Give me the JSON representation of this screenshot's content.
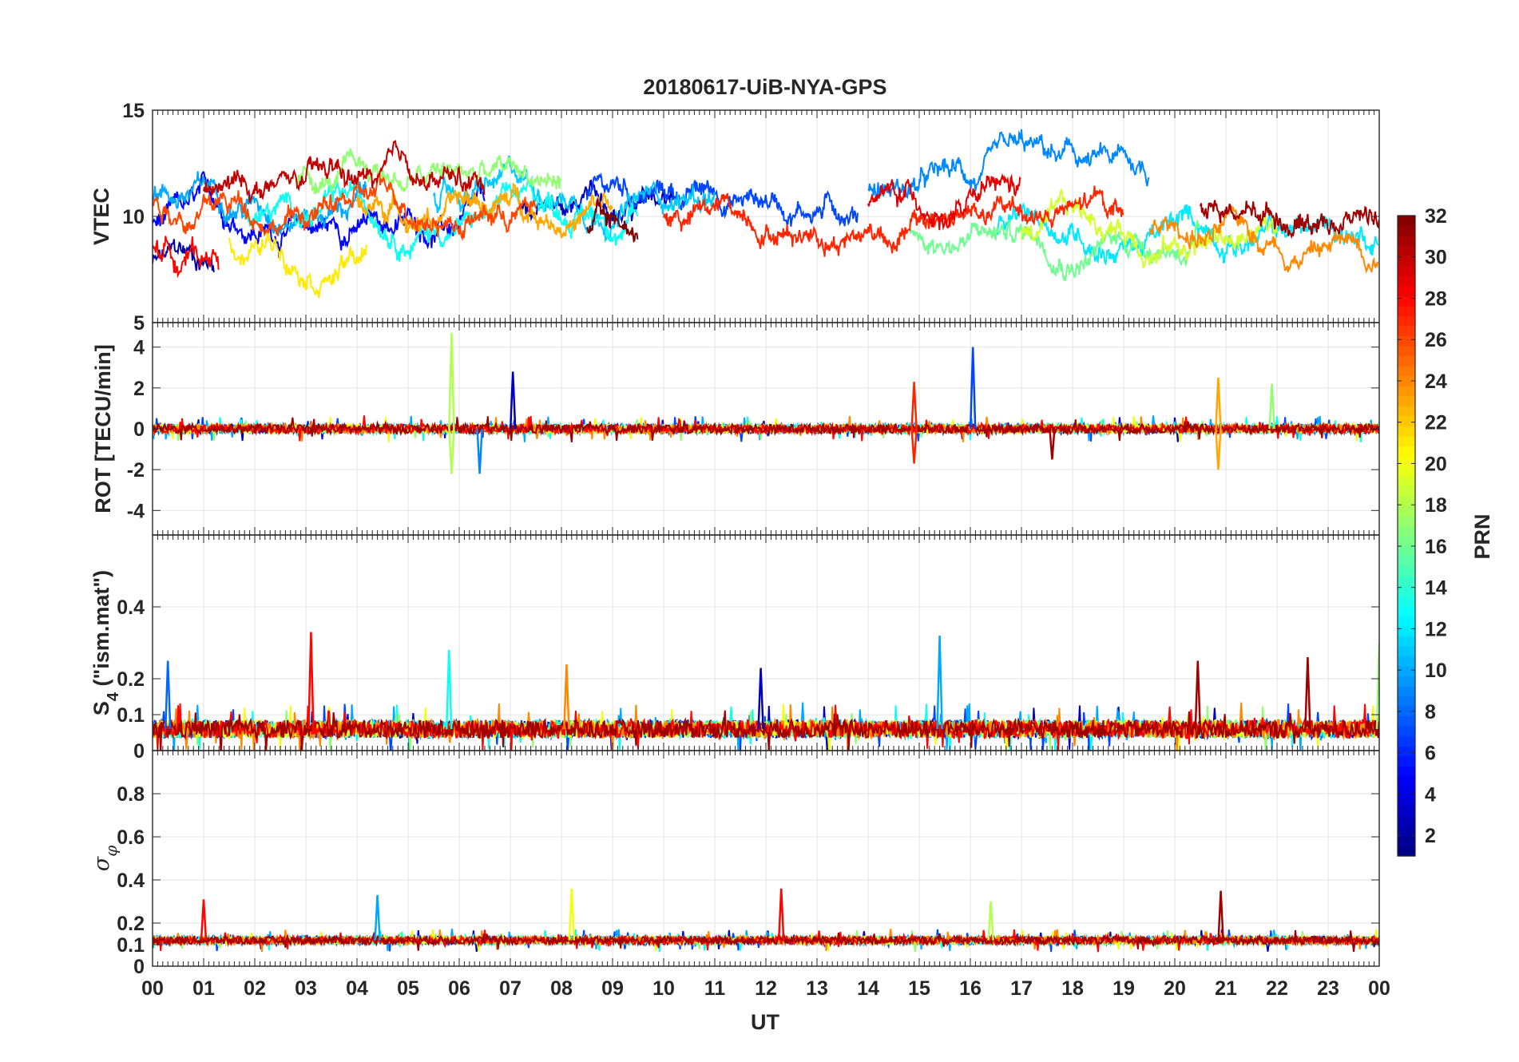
{
  "chart_data": {
    "type": "line",
    "title": "20180617-UiB-NYA-GPS",
    "xlabel": "UT",
    "xlim": [
      0,
      24
    ],
    "x_tick_labels": [
      "00",
      "01",
      "02",
      "03",
      "04",
      "05",
      "06",
      "07",
      "08",
      "09",
      "10",
      "11",
      "12",
      "13",
      "14",
      "15",
      "16",
      "17",
      "18",
      "19",
      "20",
      "21",
      "22",
      "23",
      "00"
    ],
    "colorbar": {
      "label": "PRN",
      "range": [
        1,
        32
      ],
      "ticks": [
        "2",
        "4",
        "6",
        "8",
        "10",
        "12",
        "14",
        "16",
        "18",
        "20",
        "22",
        "24",
        "26",
        "28",
        "30",
        "32"
      ],
      "colormap": "jet"
    },
    "panels": [
      {
        "ylabel": "VTEC",
        "ylim": [
          5,
          15
        ],
        "y_tick_labels": [
          "5",
          "10",
          "15"
        ],
        "baseline": 10,
        "noise": 0.5,
        "series": [
          {
            "prn": 2,
            "start": 0.0,
            "end": 1.2,
            "base": 7.8
          },
          {
            "prn": 3,
            "start": 7.2,
            "end": 10.2,
            "base": 10.5
          },
          {
            "prn": 5,
            "start": 0.0,
            "end": 6.5,
            "base": 9.6
          },
          {
            "prn": 7,
            "start": 8.5,
            "end": 13.8,
            "base": 11.0
          },
          {
            "prn": 9,
            "start": 14.0,
            "end": 19.5,
            "base": 11.5
          },
          {
            "prn": 10,
            "start": 0.0,
            "end": 4.2,
            "base": 11.2
          },
          {
            "prn": 11,
            "start": 5.5,
            "end": 11.0,
            "base": 11.2
          },
          {
            "prn": 12,
            "start": 16.5,
            "end": 24.0,
            "base": 9.3
          },
          {
            "prn": 13,
            "start": 1.8,
            "end": 9.5,
            "base": 10.2
          },
          {
            "prn": 16,
            "start": 14.8,
            "end": 20.5,
            "base": 9.3
          },
          {
            "prn": 17,
            "start": 2.8,
            "end": 8.0,
            "base": 11.6
          },
          {
            "prn": 19,
            "start": 17.0,
            "end": 22.0,
            "base": 9.2
          },
          {
            "prn": 21,
            "start": 1.5,
            "end": 4.2,
            "base": 8.8
          },
          {
            "prn": 23,
            "start": 4.0,
            "end": 9.0,
            "base": 10.6
          },
          {
            "prn": 24,
            "start": 19.5,
            "end": 24.0,
            "base": 9.0
          },
          {
            "prn": 26,
            "start": 0.0,
            "end": 7.5,
            "base": 10.6
          },
          {
            "prn": 27,
            "start": 10.0,
            "end": 19.0,
            "base": 10.0
          },
          {
            "prn": 28,
            "start": 0.0,
            "end": 1.3,
            "base": 8.5
          },
          {
            "prn": 29,
            "start": 14.0,
            "end": 17.0,
            "base": 10.5
          },
          {
            "prn": 30,
            "start": 1.0,
            "end": 6.5,
            "base": 11.2
          },
          {
            "prn": 31,
            "start": 20.5,
            "end": 24.0,
            "base": 10.5
          },
          {
            "prn": 32,
            "start": 8.5,
            "end": 9.5,
            "base": 9.5
          }
        ]
      },
      {
        "ylabel": "ROT [TECU/min]",
        "ylim": [
          -5.2,
          5.2
        ],
        "y_tick_labels": [
          "4",
          "2",
          "0",
          "-2",
          "-4"
        ],
        "baseline": 0,
        "noise": 0.22,
        "spikes": [
          {
            "x": 5.85,
            "y": 4.7,
            "prn": 18
          },
          {
            "x": 5.85,
            "y": -2.2,
            "prn": 18
          },
          {
            "x": 6.4,
            "y": -2.2,
            "prn": 9
          },
          {
            "x": 7.05,
            "y": 2.8,
            "prn": 3
          },
          {
            "x": 14.9,
            "y": 2.3,
            "prn": 27
          },
          {
            "x": 14.9,
            "y": -1.7,
            "prn": 27
          },
          {
            "x": 16.05,
            "y": 4.0,
            "prn": 7
          },
          {
            "x": 20.85,
            "y": 2.5,
            "prn": 23
          },
          {
            "x": 20.85,
            "y": -2.0,
            "prn": 23
          },
          {
            "x": 17.6,
            "y": -1.5,
            "prn": 31
          },
          {
            "x": 21.9,
            "y": 2.2,
            "prn": 17
          }
        ]
      },
      {
        "ylabel": "S4 (\"ism.mat\")",
        "ylim": [
          0,
          0.6
        ],
        "y_tick_labels": [
          "0",
          "0.1",
          "0.2",
          "0.4"
        ],
        "baseline": 0.06,
        "noise": 0.025,
        "spikes": [
          {
            "x": 3.1,
            "y": 0.33,
            "prn": 28
          },
          {
            "x": 15.4,
            "y": 0.32,
            "prn": 10
          },
          {
            "x": 24.0,
            "y": 0.3,
            "prn": 17
          },
          {
            "x": 20.45,
            "y": 0.25,
            "prn": 31
          },
          {
            "x": 22.6,
            "y": 0.26,
            "prn": 31
          },
          {
            "x": 8.1,
            "y": 0.24,
            "prn": 24
          },
          {
            "x": 11.9,
            "y": 0.23,
            "prn": 3
          },
          {
            "x": 5.8,
            "y": 0.28,
            "prn": 13
          },
          {
            "x": 0.3,
            "y": 0.25,
            "prn": 8
          }
        ]
      },
      {
        "ylabel": "σφ",
        "ylim": [
          0,
          1
        ],
        "y_tick_labels": [
          "0",
          "0.1",
          "0.2",
          "0.4",
          "0.6",
          "0.8"
        ],
        "baseline": 0.12,
        "noise": 0.018,
        "spikes": [
          {
            "x": 1.0,
            "y": 0.31,
            "prn": 28
          },
          {
            "x": 4.4,
            "y": 0.33,
            "prn": 10
          },
          {
            "x": 8.2,
            "y": 0.36,
            "prn": 20
          },
          {
            "x": 12.3,
            "y": 0.36,
            "prn": 28
          },
          {
            "x": 16.4,
            "y": 0.3,
            "prn": 18
          },
          {
            "x": 20.9,
            "y": 0.35,
            "prn": 31
          }
        ]
      }
    ]
  }
}
